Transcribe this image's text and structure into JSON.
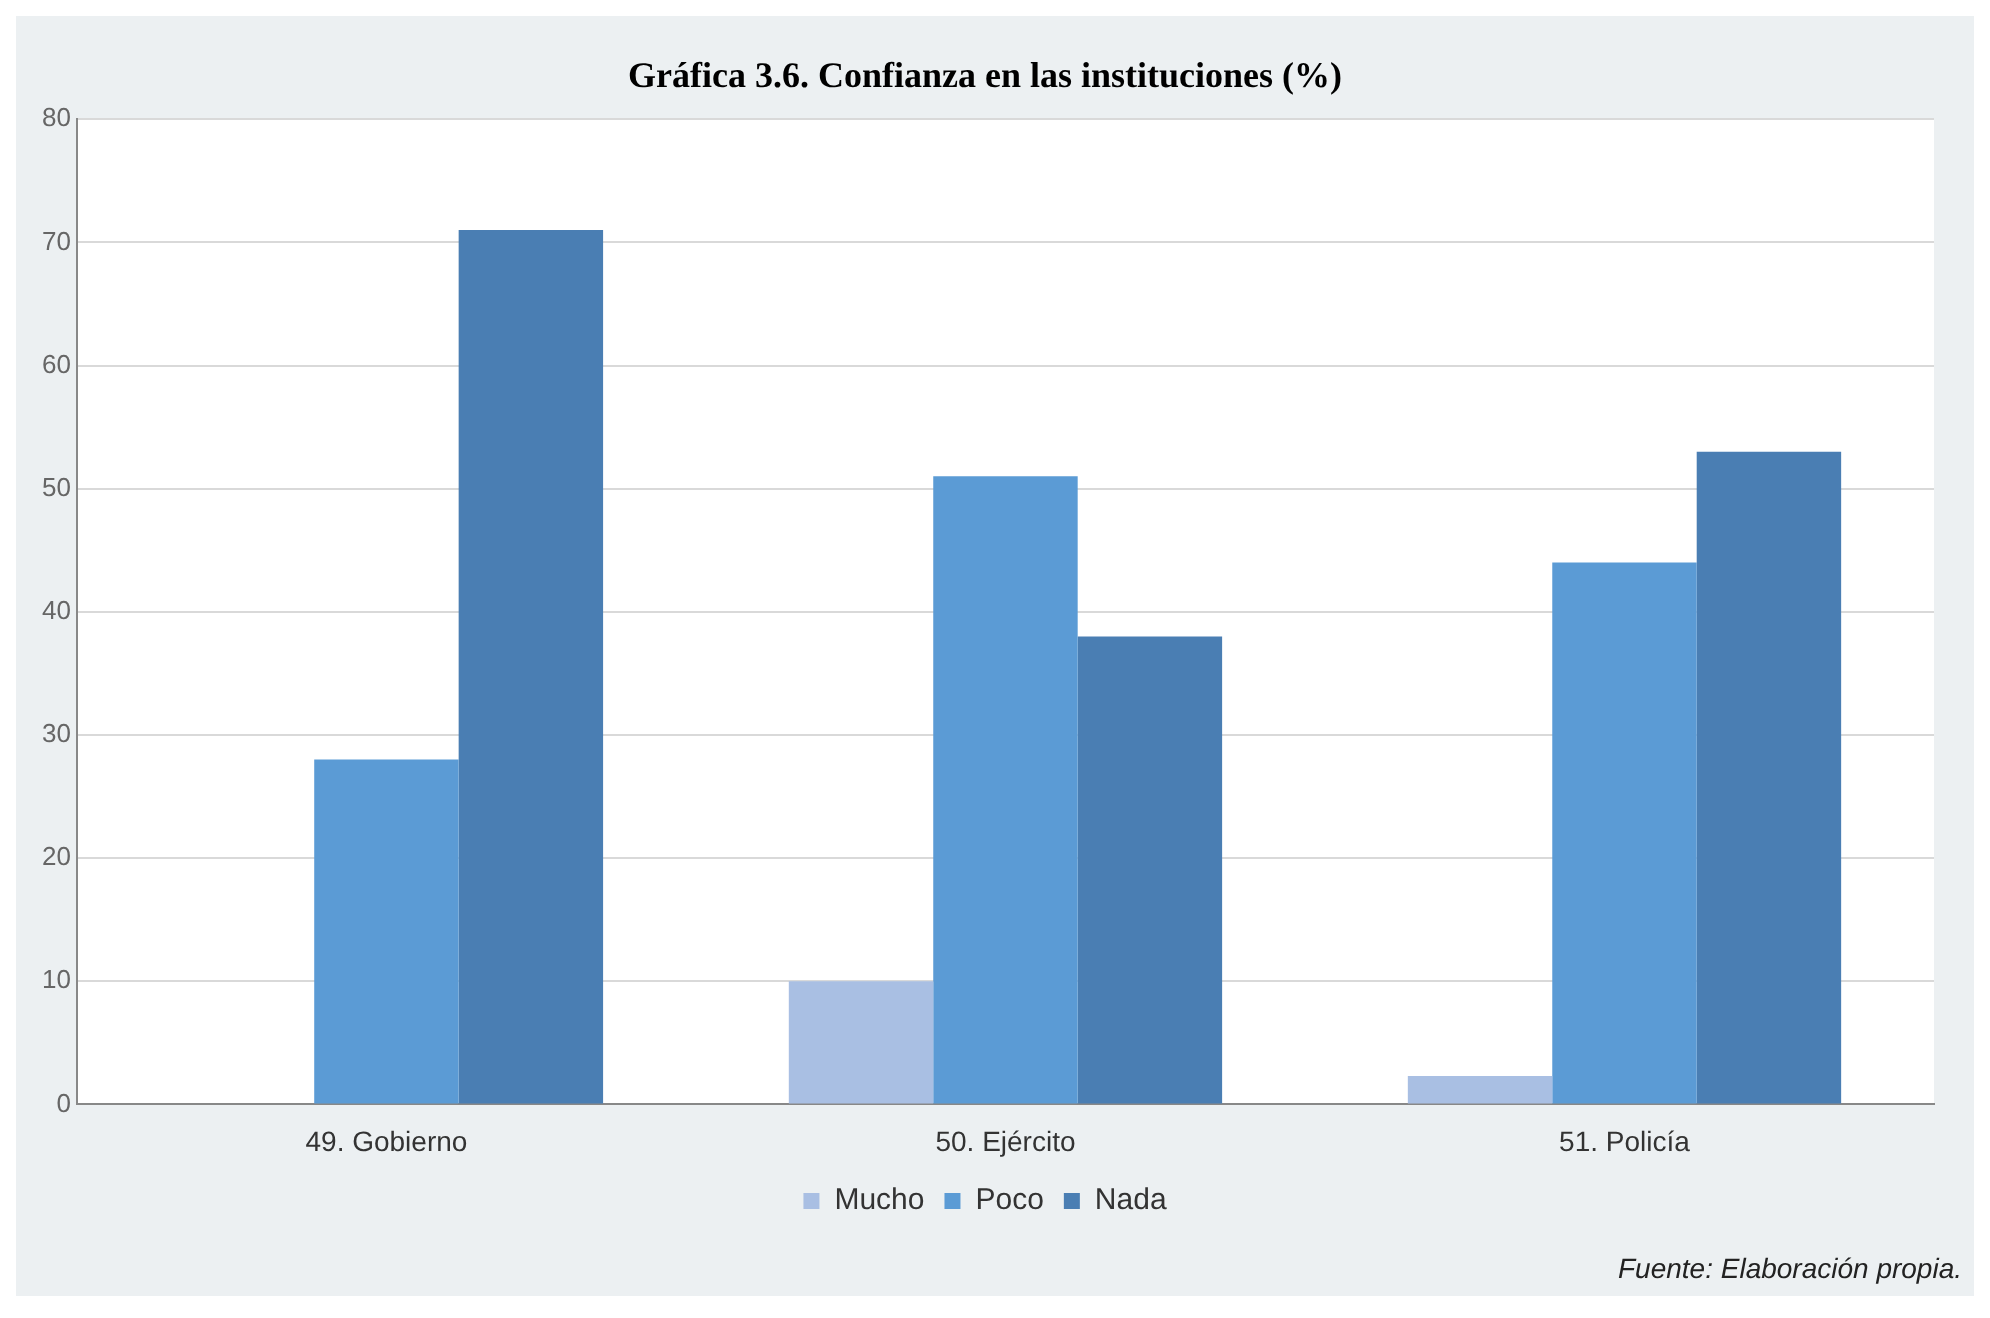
{
  "chart_data": {
    "type": "bar",
    "title": "Gráfica 3.6. Confianza en las instituciones (%)",
    "categories": [
      "49. Gobierno",
      "50. Ejército",
      "51. Policía"
    ],
    "series": [
      {
        "name": "Mucho",
        "color": "#a9bfe3",
        "values": [
          null,
          10,
          2.3
        ]
      },
      {
        "name": "Poco",
        "color": "#5b9bd5",
        "values": [
          28,
          51,
          44
        ]
      },
      {
        "name": "Nada",
        "color": "#4a7eb3",
        "values": [
          71,
          38,
          53
        ]
      }
    ],
    "ylim": [
      0,
      80
    ],
    "yticks": [
      0,
      10,
      20,
      30,
      40,
      50,
      60,
      70,
      80
    ],
    "grid": "y",
    "legend": "bottom",
    "annotations": [
      "Fuente: Elaboración propia."
    ]
  }
}
